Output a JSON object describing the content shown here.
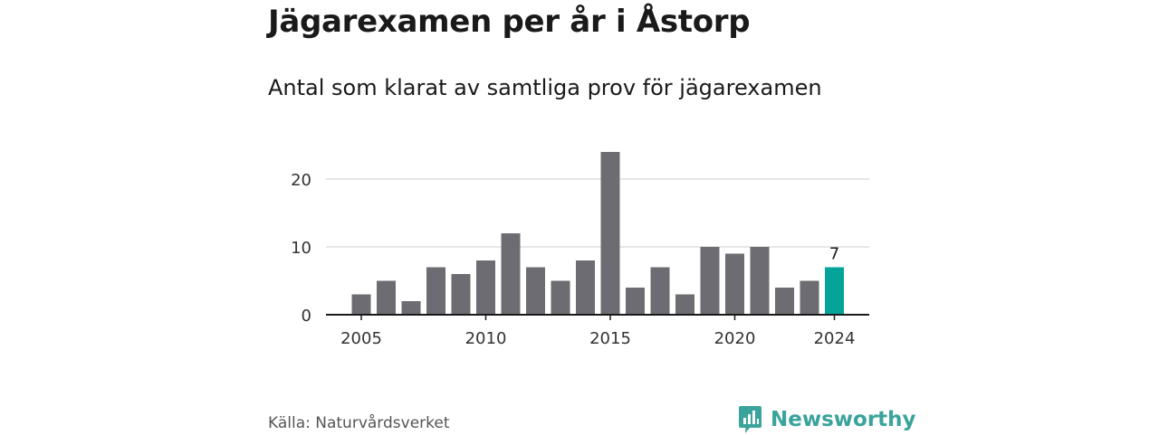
{
  "header": {
    "title": "Jägarexamen per år i Åstorp",
    "subtitle": "Antal som klarat av samtliga prov för jägarexamen"
  },
  "footer": {
    "source": "Källa: Naturvårdsverket",
    "brand": "Newsworthy"
  },
  "colors": {
    "bar": "#6d6c72",
    "highlight": "#05a39a",
    "brand": "#3aa39b",
    "grid": "#dddddd",
    "axis": "#1a1a1a"
  },
  "icons": {
    "brand_logo": "newsworthy-logo-icon"
  },
  "chart_data": {
    "type": "bar",
    "title": "Jägarexamen per år i Åstorp",
    "subtitle": "Antal som klarat av samtliga prov för jägarexamen",
    "xlabel": "",
    "ylabel": "",
    "x": [
      2005,
      2006,
      2007,
      2008,
      2009,
      2010,
      2011,
      2012,
      2013,
      2014,
      2015,
      2016,
      2017,
      2018,
      2019,
      2020,
      2021,
      2022,
      2023,
      2024
    ],
    "values": [
      3,
      5,
      2,
      7,
      6,
      8,
      12,
      7,
      5,
      8,
      24,
      4,
      7,
      3,
      10,
      9,
      10,
      4,
      5,
      7
    ],
    "ylim": [
      0,
      25
    ],
    "yticks": [
      0,
      10,
      20
    ],
    "xticks": [
      2005,
      2010,
      2015,
      2020,
      2024
    ],
    "highlight": {
      "x": 2024,
      "value": 7,
      "label": "7"
    },
    "grid": true,
    "legend": "none"
  }
}
